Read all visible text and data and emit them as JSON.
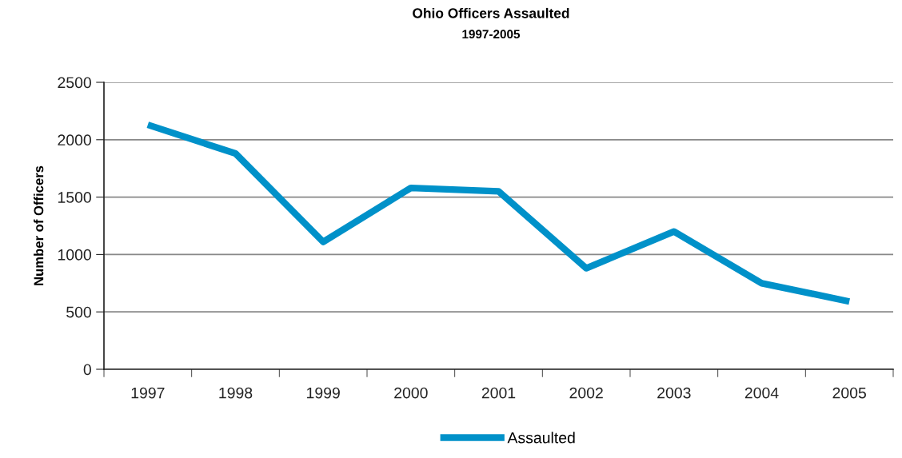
{
  "chart_data": {
    "type": "line",
    "title": "Ohio Officers Assaulted",
    "subtitle": "1997-2005",
    "ylabel": "Number of Officers",
    "categories": [
      "1997",
      "1998",
      "1999",
      "2000",
      "2001",
      "2002",
      "2003",
      "2004",
      "2005"
    ],
    "series": [
      {
        "name": "Assaulted",
        "color": "#0091c9",
        "values": [
          2130,
          1880,
          1110,
          1580,
          1550,
          880,
          1200,
          750,
          590
        ]
      }
    ],
    "ylim": [
      0,
      2500
    ],
    "yticks": [
      0,
      500,
      1000,
      1500,
      2000,
      2500
    ],
    "grid": "y",
    "legend": "bottom",
    "marker": "none",
    "line_style": "solid"
  }
}
